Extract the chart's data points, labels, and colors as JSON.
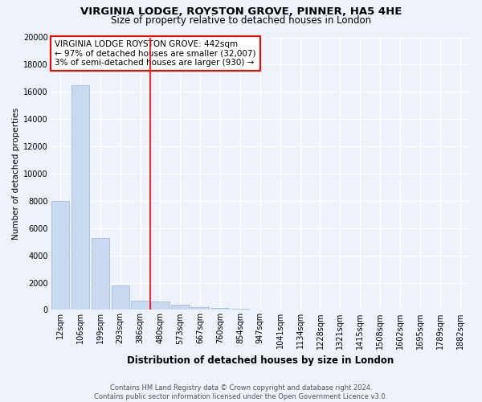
{
  "title": "VIRGINIA LODGE, ROYSTON GROVE, PINNER, HA5 4HE",
  "subtitle": "Size of property relative to detached houses in London",
  "xlabel": "Distribution of detached houses by size in London",
  "ylabel": "Number of detached properties",
  "bar_labels": [
    "12sqm",
    "106sqm",
    "199sqm",
    "293sqm",
    "386sqm",
    "480sqm",
    "573sqm",
    "667sqm",
    "760sqm",
    "854sqm",
    "947sqm",
    "1041sqm",
    "1134sqm",
    "1228sqm",
    "1321sqm",
    "1415sqm",
    "1508sqm",
    "1602sqm",
    "1695sqm",
    "1789sqm",
    "1882sqm"
  ],
  "bar_values": [
    8000,
    16500,
    5300,
    1800,
    650,
    600,
    350,
    200,
    120,
    70,
    30,
    15,
    8,
    5,
    3,
    2,
    1,
    1,
    1,
    0,
    0
  ],
  "bar_color": "#c8d9f0",
  "bar_edge_color": "#a0bde0",
  "vline_x": 4.5,
  "vline_color": "red",
  "annotation_line1": "VIRGINIA LODGE ROYSTON GROVE: 442sqm",
  "annotation_line2": "← 97% of detached houses are smaller (32,007)",
  "annotation_line3": "3% of semi-detached houses are larger (930) →",
  "annotation_box_color": "white",
  "annotation_box_edge_color": "red",
  "ylim": [
    0,
    20000
  ],
  "yticks": [
    0,
    2000,
    4000,
    6000,
    8000,
    10000,
    12000,
    14000,
    16000,
    18000,
    20000
  ],
  "footer_text": "Contains HM Land Registry data © Crown copyright and database right 2024.\nContains public sector information licensed under the Open Government Licence v3.0.",
  "bg_color": "#eef2fb",
  "grid_color": "white",
  "title_fontsize": 9.5,
  "subtitle_fontsize": 8.5,
  "axis_fontsize": 7,
  "annotation_fontsize": 7.5,
  "footer_fontsize": 6,
  "ylabel_fontsize": 7.5,
  "xlabel_fontsize": 8.5
}
